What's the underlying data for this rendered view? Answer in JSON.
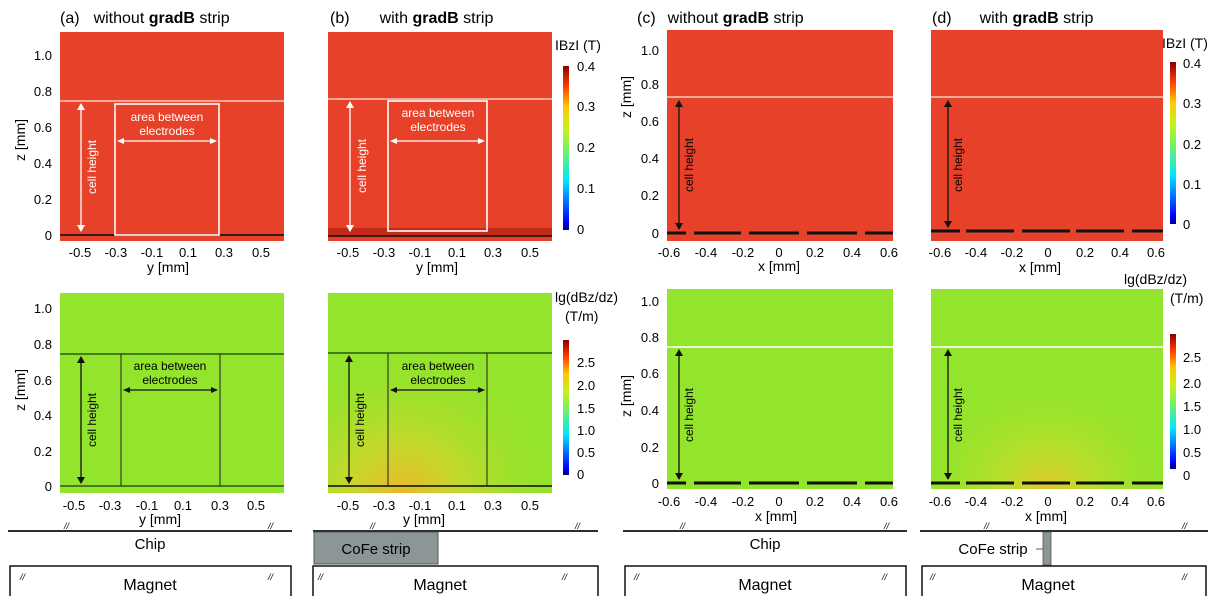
{
  "panels": [
    {
      "letter": "(a)",
      "pre": "without ",
      "bold": "gradB",
      "post": " strip",
      "axis": "y [mm]",
      "ticks": [
        "-0.5",
        "-0.3",
        "-0.1",
        "0.1",
        "0.3",
        "0.5"
      ],
      "support": "Chip"
    },
    {
      "letter": "(b)",
      "pre": "with ",
      "bold": "gradB",
      "post": " strip",
      "axis": "y [mm]",
      "ticks": [
        "-0.5",
        "-0.3",
        "-0.1",
        "0.1",
        "0.3",
        "0.5"
      ],
      "support": "CoFe strip"
    },
    {
      "letter": "(c)",
      "pre": "without ",
      "bold": "gradB",
      "post": " strip",
      "axis": "x [mm]",
      "ticks": [
        "-0.6",
        "-0.4",
        "-0.2",
        "0",
        "0.2",
        "0.4",
        "0.6"
      ],
      "support": "Chip"
    },
    {
      "letter": "(d)",
      "pre": "with ",
      "bold": "gradB",
      "post": " strip",
      "axis": "x [mm]",
      "ticks": [
        "-0.6",
        "-0.4",
        "-0.2",
        "0",
        "0.2",
        "0.4",
        "0.6"
      ],
      "support": "CoFe strip"
    }
  ],
  "z_axis": {
    "label": "z [mm]",
    "ticks": [
      "0",
      "0.2",
      "0.4",
      "0.6",
      "0.8",
      "1.0"
    ]
  },
  "labels": {
    "cell_height": "cell height",
    "area_line1": "area between",
    "area_line2": "electrodes",
    "magnet": "Magnet",
    "break_mark": "//"
  },
  "colorbar_top": {
    "title": "IBzI (T)",
    "ticks": [
      "0",
      "0.1",
      "0.2",
      "0.3",
      "0.4"
    ]
  },
  "colorbar_bottom": {
    "title_line1": "lg(dBz/dz)",
    "title_line2": "(T/m)",
    "ticks": [
      "0",
      "0.5",
      "1.0",
      "1.5",
      "2.0",
      "2.5"
    ]
  },
  "colors": {
    "field_red": "#e8412a",
    "gradient_green": "#92e42c",
    "strip_gray": "#8c9696"
  }
}
